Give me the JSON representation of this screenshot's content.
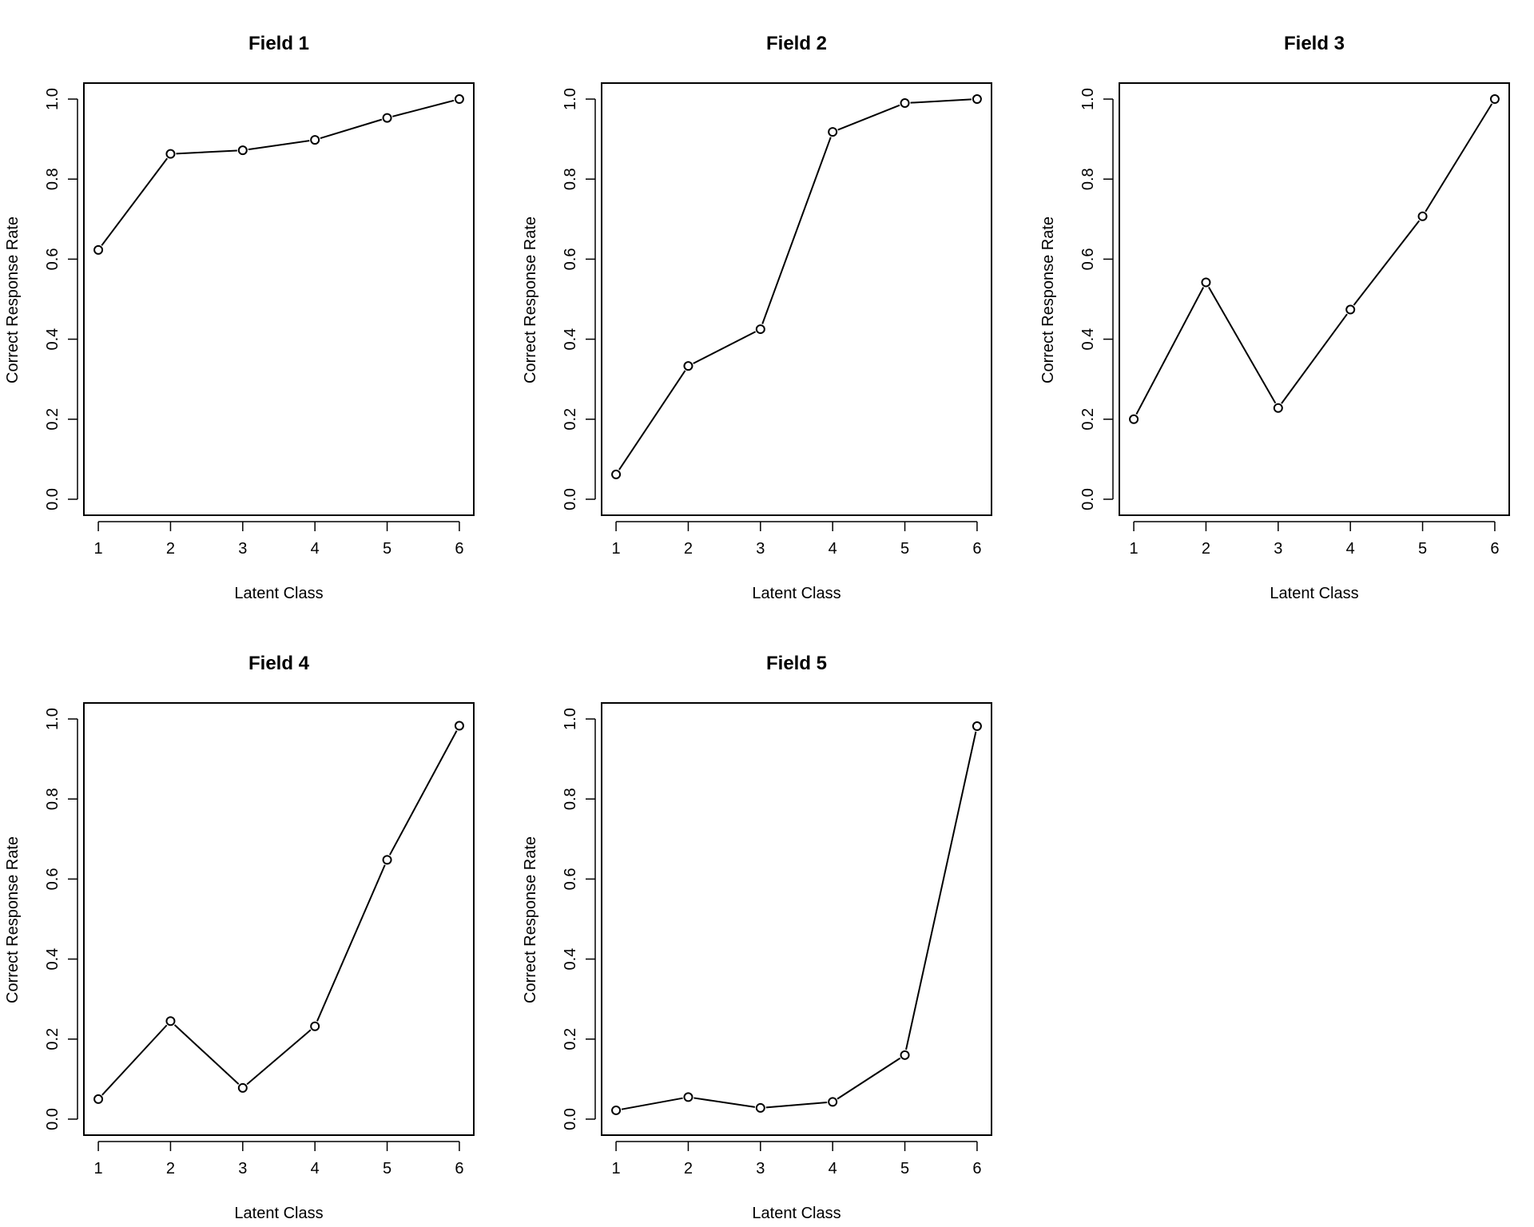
{
  "chart_data": [
    {
      "type": "line",
      "title": "Field 1",
      "xlabel": "Latent Class",
      "ylabel": "Correct Response Rate",
      "x": [
        1,
        2,
        3,
        4,
        5,
        6
      ],
      "values": [
        0.623,
        0.863,
        0.872,
        0.898,
        0.953,
        1.0
      ],
      "xlim": [
        0.8,
        6.2
      ],
      "ylim": [
        -0.04,
        1.04
      ],
      "xticks": [
        "1",
        "2",
        "3",
        "4",
        "5",
        "6"
      ],
      "yticks": [
        "0.0",
        "0.2",
        "0.4",
        "0.6",
        "0.8",
        "1.0"
      ],
      "grid": false
    },
    {
      "type": "line",
      "title": "Field 2",
      "xlabel": "Latent Class",
      "ylabel": "Correct Response Rate",
      "x": [
        1,
        2,
        3,
        4,
        5,
        6
      ],
      "values": [
        0.062,
        0.333,
        0.425,
        0.918,
        0.99,
        1.0
      ],
      "xlim": [
        0.8,
        6.2
      ],
      "ylim": [
        -0.04,
        1.04
      ],
      "xticks": [
        "1",
        "2",
        "3",
        "4",
        "5",
        "6"
      ],
      "yticks": [
        "0.0",
        "0.2",
        "0.4",
        "0.6",
        "0.8",
        "1.0"
      ],
      "grid": false
    },
    {
      "type": "line",
      "title": "Field 3",
      "xlabel": "Latent Class",
      "ylabel": "Correct Response Rate",
      "x": [
        1,
        2,
        3,
        4,
        5,
        6
      ],
      "values": [
        0.2,
        0.542,
        0.228,
        0.474,
        0.707,
        1.0
      ],
      "xlim": [
        0.8,
        6.2
      ],
      "ylim": [
        -0.04,
        1.04
      ],
      "xticks": [
        "1",
        "2",
        "3",
        "4",
        "5",
        "6"
      ],
      "yticks": [
        "0.0",
        "0.2",
        "0.4",
        "0.6",
        "0.8",
        "1.0"
      ],
      "grid": false
    },
    {
      "type": "line",
      "title": "Field 4",
      "xlabel": "Latent Class",
      "ylabel": "Correct Response Rate",
      "x": [
        1,
        2,
        3,
        4,
        5,
        6
      ],
      "values": [
        0.05,
        0.245,
        0.078,
        0.232,
        0.648,
        0.983
      ],
      "xlim": [
        0.8,
        6.2
      ],
      "ylim": [
        -0.04,
        1.04
      ],
      "xticks": [
        "1",
        "2",
        "3",
        "4",
        "5",
        "6"
      ],
      "yticks": [
        "0.0",
        "0.2",
        "0.4",
        "0.6",
        "0.8",
        "1.0"
      ],
      "grid": false
    },
    {
      "type": "line",
      "title": "Field 5",
      "xlabel": "Latent Class",
      "ylabel": "Correct Response Rate",
      "x": [
        1,
        2,
        3,
        4,
        5,
        6
      ],
      "values": [
        0.022,
        0.055,
        0.028,
        0.043,
        0.16,
        0.982
      ],
      "xlim": [
        0.8,
        6.2
      ],
      "ylim": [
        -0.04,
        1.04
      ],
      "xticks": [
        "1",
        "2",
        "3",
        "4",
        "5",
        "6"
      ],
      "yticks": [
        "0.0",
        "0.2",
        "0.4",
        "0.6",
        "0.8",
        "1.0"
      ],
      "grid": false
    }
  ]
}
